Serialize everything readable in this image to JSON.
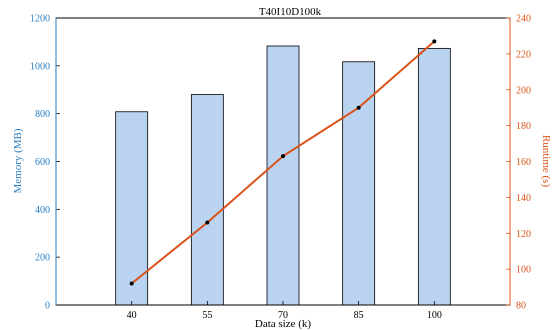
{
  "chart_data": {
    "type": "bar",
    "title": "T40I10D100k",
    "xlabel": "Data size (k)",
    "categories": [
      "40",
      "55",
      "70",
      "85",
      "100"
    ],
    "series": [
      {
        "type": "bar",
        "axis": "left",
        "values": [
          808,
          880,
          1083,
          1017,
          1073
        ],
        "color": "#b9d3f1"
      },
      {
        "type": "line",
        "axis": "right",
        "values": [
          92,
          126,
          163,
          190,
          227
        ],
        "color": "#d95319"
      }
    ],
    "y_left": {
      "label": "Memory (MB)",
      "range": [
        0,
        1200
      ],
      "ticks": [
        "0",
        "200",
        "400",
        "600",
        "800",
        "1000",
        "1200"
      ],
      "color": "#2b7fc1"
    },
    "y_right": {
      "label": "Runtime (s)",
      "range": [
        80,
        240
      ],
      "ticks": [
        "80",
        "100",
        "120",
        "140",
        "160",
        "180",
        "200",
        "220",
        "240"
      ],
      "color": "#d95319"
    },
    "grid": false,
    "legend": "none"
  }
}
